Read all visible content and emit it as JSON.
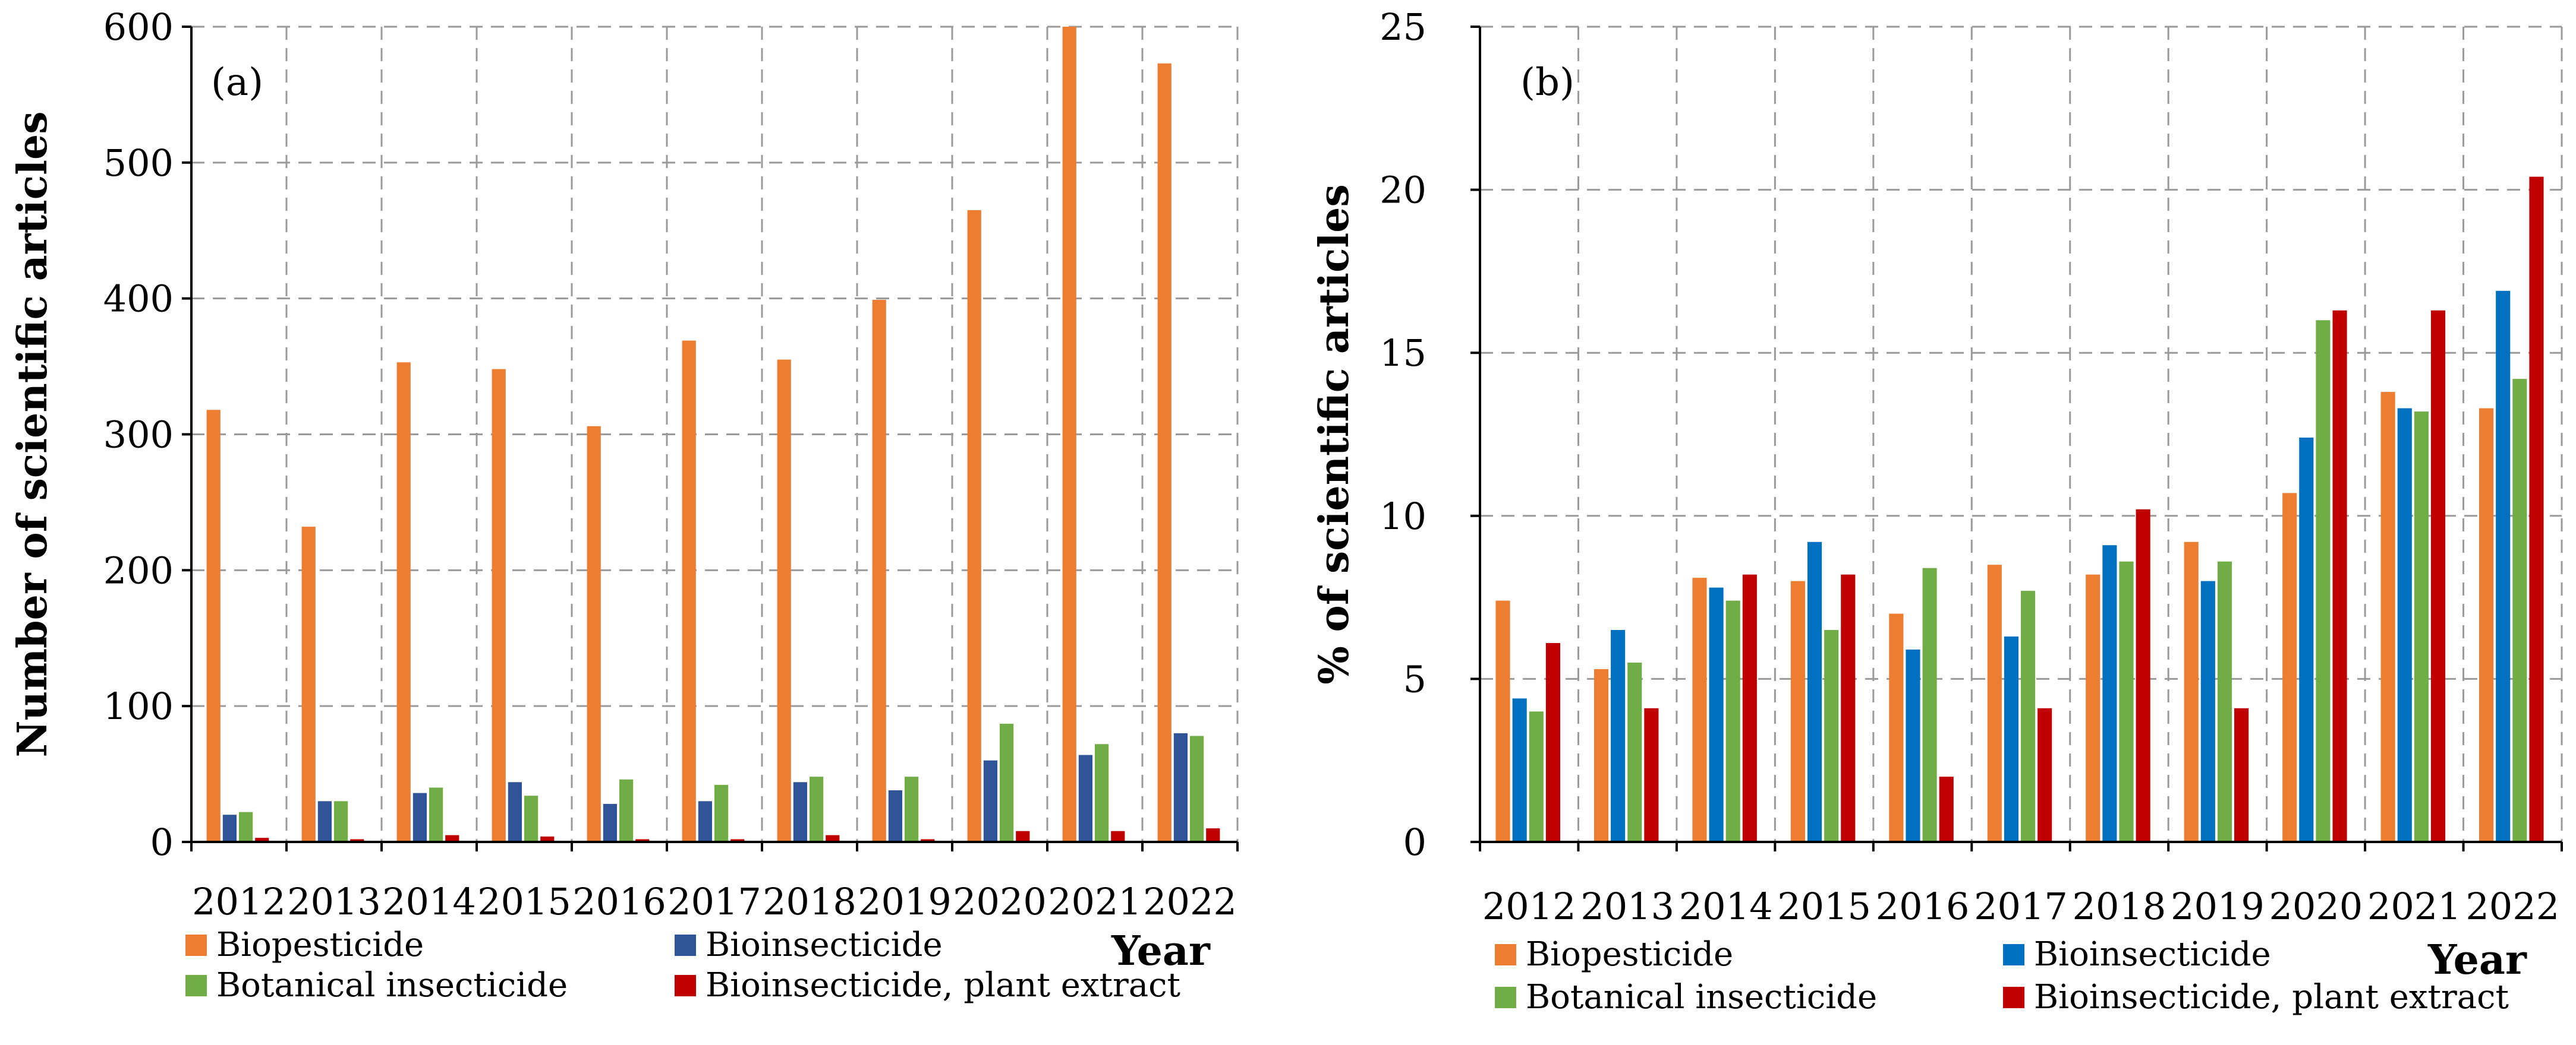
{
  "chart_data": [
    {
      "type": "bar",
      "panel_label": "(a)",
      "ylabel": "Number of scientific articles",
      "xlabel": "Year",
      "ylim": [
        0,
        600
      ],
      "yticks": [
        0,
        100,
        200,
        300,
        400,
        500,
        600
      ],
      "categories": [
        "2012",
        "2013",
        "2014",
        "2015",
        "2016",
        "2017",
        "2018",
        "2019",
        "2020",
        "2021",
        "2022"
      ],
      "grid": true,
      "series": [
        {
          "name": "Biopesticide",
          "color": "#ED7D31",
          "values": [
            318,
            232,
            353,
            348,
            306,
            369,
            355,
            399,
            465,
            600,
            573
          ]
        },
        {
          "name": "Bioinsecticide",
          "color": "#2F5597",
          "values": [
            20,
            30,
            36,
            44,
            28,
            30,
            44,
            38,
            60,
            64,
            80
          ]
        },
        {
          "name": "Botanical insecticide",
          "color": "#70AD47",
          "values": [
            22,
            30,
            40,
            34,
            46,
            42,
            48,
            48,
            87,
            72,
            78
          ]
        },
        {
          "name": "Bioinsecticide, plant extract",
          "color": "#C00000",
          "values": [
            3,
            2,
            5,
            4,
            2,
            2,
            5,
            2,
            8,
            8,
            10
          ]
        }
      ],
      "legend": "bottom"
    },
    {
      "type": "bar",
      "panel_label": "(b)",
      "ylabel": "% of scientific articles",
      "xlabel": "Year",
      "ylim": [
        0,
        25
      ],
      "yticks": [
        0,
        5,
        10,
        15,
        20,
        25
      ],
      "categories": [
        "2012",
        "2013",
        "2014",
        "2015",
        "2016",
        "2017",
        "2018",
        "2019",
        "2020",
        "2021",
        "2022"
      ],
      "grid": true,
      "series": [
        {
          "name": "Biopesticide",
          "color": "#ED7D31",
          "values": [
            7.4,
            5.3,
            8.1,
            8.0,
            7.0,
            8.5,
            8.2,
            9.2,
            10.7,
            13.8,
            13.3
          ]
        },
        {
          "name": "Bioinsecticide",
          "color": "#0070C0",
          "values": [
            4.4,
            6.5,
            7.8,
            9.2,
            5.9,
            6.3,
            9.1,
            8.0,
            12.4,
            13.3,
            16.9
          ]
        },
        {
          "name": "Botanical insecticide",
          "color": "#70AD47",
          "values": [
            4.0,
            5.5,
            7.4,
            6.5,
            8.4,
            7.7,
            8.6,
            8.6,
            16.0,
            13.2,
            14.2
          ]
        },
        {
          "name": "Bioinsecticide, plant extract",
          "color": "#C00000",
          "values": [
            6.1,
            4.1,
            8.2,
            8.2,
            2.0,
            4.1,
            10.2,
            4.1,
            16.3,
            16.3,
            20.4
          ]
        }
      ],
      "legend": "bottom"
    }
  ]
}
